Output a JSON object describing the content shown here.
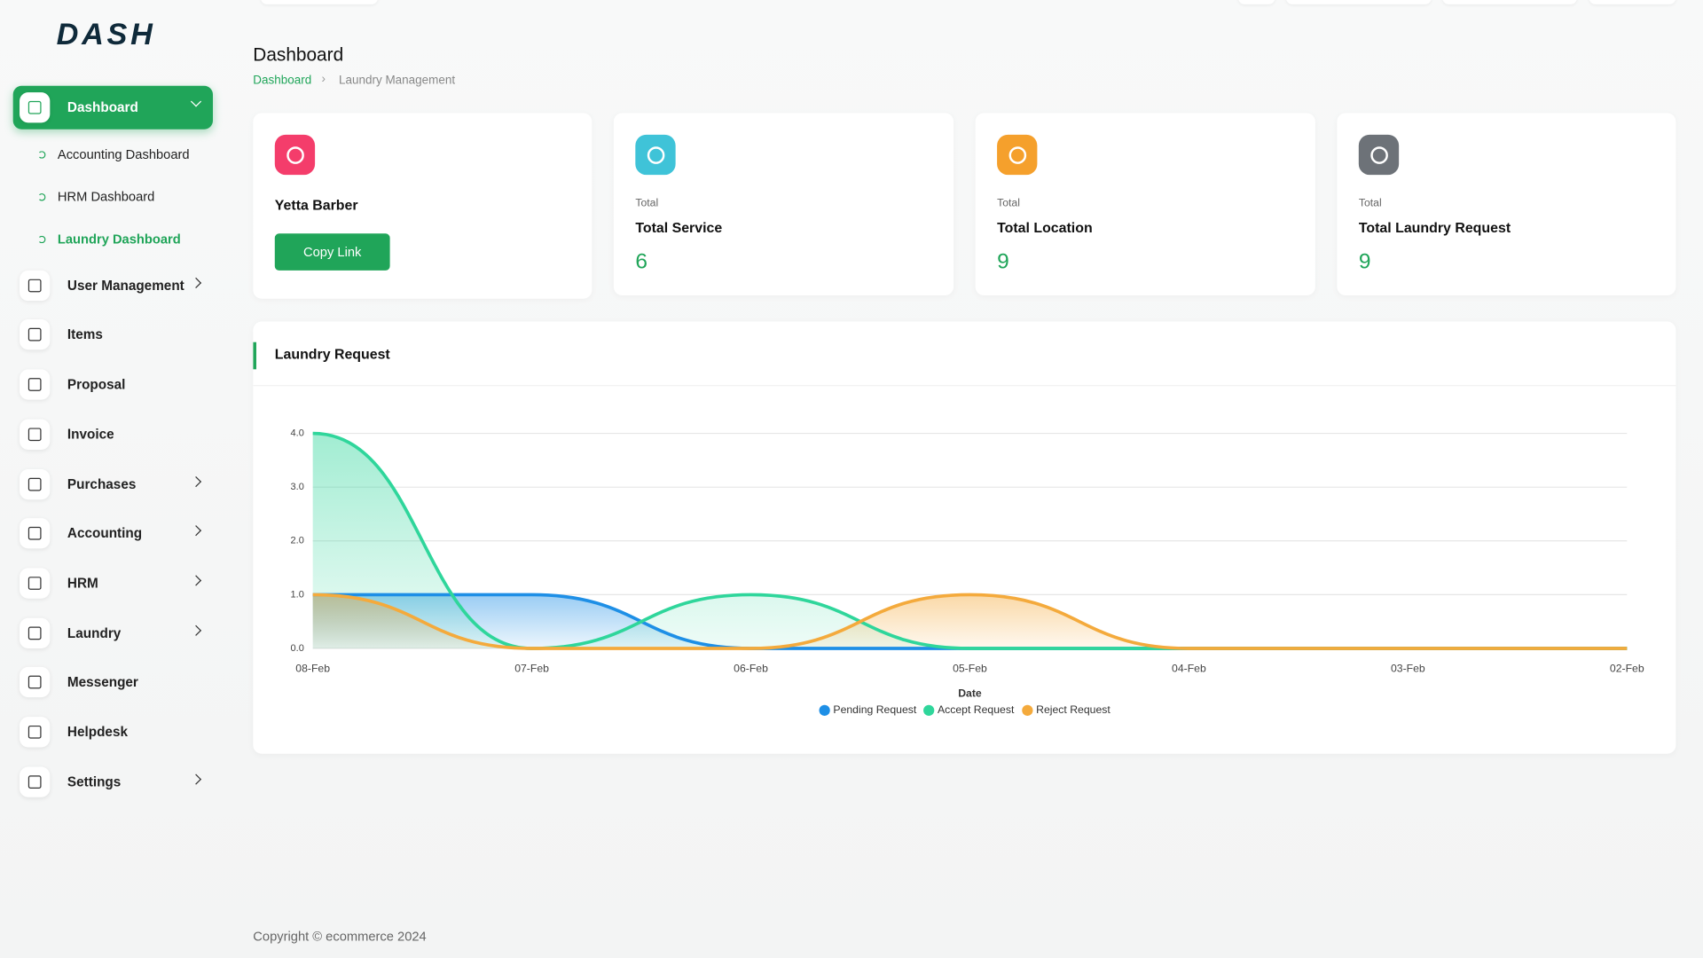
{
  "brand": "DASH",
  "menu": [
    "Dashboard",
    "User Management",
    "Items",
    "Proposal",
    "Invoice",
    "Purchases",
    "Accounting",
    "HRM",
    "Laundry",
    "Messenger",
    "Helpdesk",
    "Settings"
  ],
  "submenu": [
    "Accounting Dashboard",
    "HRM Dashboard",
    "Laundry Dashboard"
  ],
  "header": {
    "title": "Dashboard",
    "breadcrumb": [
      "Dashboard",
      "Laundry Management"
    ]
  },
  "profile": {
    "name": "Yetta Barber",
    "button": "Copy Link"
  },
  "stats": [
    {
      "caption": "Total",
      "label": "Total Service",
      "value": 6
    },
    {
      "caption": "Total",
      "label": "Total Location",
      "value": 9
    },
    {
      "caption": "Total",
      "label": "Total Laundry Request",
      "value": 9
    }
  ],
  "chart_data": {
    "type": "area",
    "title": "Laundry Request",
    "x_label": "Date",
    "categories": [
      "08-Feb",
      "07-Feb",
      "06-Feb",
      "05-Feb",
      "04-Feb",
      "03-Feb",
      "02-Feb"
    ],
    "series": [
      {
        "name": "Pending Request",
        "color": "#1e8fe6",
        "values": [
          1,
          1,
          0,
          0,
          0,
          0,
          0
        ]
      },
      {
        "name": "Accept Request",
        "color": "#2fd69b",
        "values": [
          4,
          0,
          1,
          0,
          0,
          0,
          0
        ]
      },
      {
        "name": "Reject Request",
        "color": "#f4aa3c",
        "values": [
          1,
          0,
          0,
          1,
          0,
          0,
          0
        ]
      }
    ],
    "ylim": [
      0,
      4
    ],
    "yticks": [
      {
        "value": 0,
        "label": "0.0"
      },
      {
        "value": 1,
        "label": "1.0"
      },
      {
        "value": 2,
        "label": "2.0"
      },
      {
        "value": 3,
        "label": "3.0"
      },
      {
        "value": 4,
        "label": "4.0"
      }
    ],
    "grid": true
  },
  "footer": "Copyright © ecommerce 2024"
}
